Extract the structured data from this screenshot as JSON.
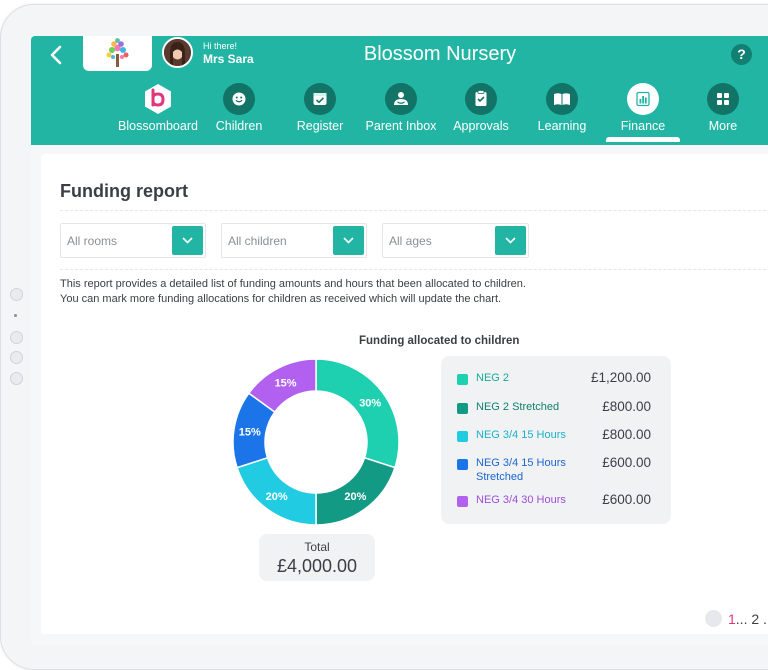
{
  "app": {
    "title": "Blossom Nursery",
    "greeting": "Hi there!",
    "user_name": "Mrs Sara",
    "help_label": "?"
  },
  "nav": [
    {
      "label": "Blossomboard",
      "icon": "blossomboard-icon",
      "active": false
    },
    {
      "label": "Children",
      "icon": "smiley-icon",
      "active": false
    },
    {
      "label": "Register",
      "icon": "register-check-icon",
      "active": false
    },
    {
      "label": "Parent Inbox",
      "icon": "parent-inbox-icon",
      "active": false
    },
    {
      "label": "Approvals",
      "icon": "clipboard-check-icon",
      "active": false
    },
    {
      "label": "Learning",
      "icon": "book-icon",
      "active": false
    },
    {
      "label": "Finance",
      "icon": "bar-chart-icon",
      "active": true
    },
    {
      "label": "More",
      "icon": "grid-icon",
      "active": false
    }
  ],
  "page": {
    "title": "Funding report",
    "filters": [
      {
        "value": "All rooms"
      },
      {
        "value": "All children"
      },
      {
        "value": "All ages"
      }
    ],
    "description_1": "This report provides a detailed list of funding amounts and hours that been allocated to children.",
    "description_2": "You can mark more funding allocations for children as received which will update the chart.",
    "total_label": "Total",
    "total_value": "£4,000.00"
  },
  "pagination": {
    "current": "1",
    "rest": "... 2 ."
  },
  "chart_data": {
    "type": "pie",
    "title": "Funding allocated to children",
    "series": [
      {
        "name": "NEG 2",
        "value": 1200,
        "amount": "£1,200.00",
        "percent_label": "30%",
        "color": "#1ecfb0",
        "legend_text_color": "#1aa896"
      },
      {
        "name": "NEG 2 Stretched",
        "value": 800,
        "amount": "£800.00",
        "percent_label": "20%",
        "color": "#139a85",
        "legend_text_color": "#127f6e"
      },
      {
        "name": "NEG 3/4 15 Hours",
        "value": 800,
        "amount": "£800.00",
        "percent_label": "20%",
        "color": "#21cbe1",
        "legend_text_color": "#1ab2c6"
      },
      {
        "name": "NEG 3/4 15 Hours Stretched",
        "value": 600,
        "amount": "£600.00",
        "percent_label": "15%",
        "color": "#1b74e8",
        "legend_text_color": "#1b66cf"
      },
      {
        "name": "NEG 3/4 30 Hours",
        "value": 600,
        "amount": "£600.00",
        "percent_label": "15%",
        "color": "#b160f0",
        "legend_text_color": "#9b4fd8"
      }
    ],
    "legend_placement": "right"
  }
}
